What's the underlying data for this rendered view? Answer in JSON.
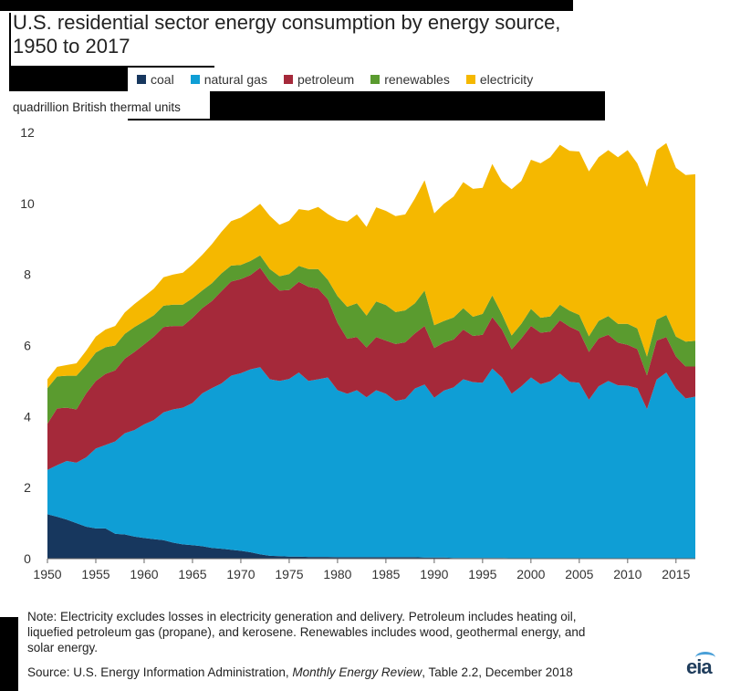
{
  "header": {
    "title_line1": "U.S. residential sector energy consumption by energy source,",
    "title_line2": "1950 to 2017",
    "units": "quadrillion British thermal units"
  },
  "legend": [
    {
      "label": "coal",
      "color": "#17375e"
    },
    {
      "label": "natural gas",
      "color": "#0f9ed5"
    },
    {
      "label": "petroleum",
      "color": "#a5293a"
    },
    {
      "label": "renewables",
      "color": "#5a9b2f"
    },
    {
      "label": "electricity",
      "color": "#f5b800"
    }
  ],
  "footer": {
    "note_line1": "Note: Electricity excludes losses in electricity generation and delivery. Petroleum includes heating oil,",
    "note_line2": "liquefied petroleum gas (propane), and kerosene. Renewables includes wood, geothermal energy, and",
    "note_line3": "solar energy.",
    "source_prefix": "Source: U.S. Energy Information Administration, ",
    "source_title": "Monthly Energy Review",
    "source_suffix": ", Table 2.2, December 2018",
    "logo": "eia"
  },
  "chart_data": {
    "type": "area",
    "stacked": true,
    "title": "U.S. residential sector energy consumption by energy source, 1950 to 2017",
    "ylabel": "quadrillion British thermal units",
    "xlabel": "",
    "xlim": [
      1950,
      2017
    ],
    "ylim": [
      0,
      12
    ],
    "yticks": [
      0,
      2,
      4,
      6,
      8,
      10,
      12
    ],
    "xticks": [
      1950,
      1955,
      1960,
      1965,
      1970,
      1975,
      1980,
      1985,
      1990,
      1995,
      2000,
      2005,
      2010,
      2015
    ],
    "grid": false,
    "legend_position": "top",
    "x": [
      1950,
      1951,
      1952,
      1953,
      1954,
      1955,
      1956,
      1957,
      1958,
      1959,
      1960,
      1961,
      1962,
      1963,
      1964,
      1965,
      1966,
      1967,
      1968,
      1969,
      1970,
      1971,
      1972,
      1973,
      1974,
      1975,
      1976,
      1977,
      1978,
      1979,
      1980,
      1981,
      1982,
      1983,
      1984,
      1985,
      1986,
      1987,
      1988,
      1989,
      1990,
      1991,
      1992,
      1993,
      1994,
      1995,
      1996,
      1997,
      1998,
      1999,
      2000,
      2001,
      2002,
      2003,
      2004,
      2005,
      2006,
      2007,
      2008,
      2009,
      2010,
      2011,
      2012,
      2013,
      2014,
      2015,
      2016,
      2017
    ],
    "series": [
      {
        "name": "coal",
        "color": "#17375e",
        "values": [
          1.25,
          1.18,
          1.1,
          1.0,
          0.9,
          0.85,
          0.85,
          0.7,
          0.68,
          0.62,
          0.58,
          0.55,
          0.52,
          0.45,
          0.4,
          0.38,
          0.35,
          0.3,
          0.28,
          0.25,
          0.22,
          0.18,
          0.12,
          0.08,
          0.07,
          0.06,
          0.06,
          0.05,
          0.05,
          0.05,
          0.04,
          0.04,
          0.04,
          0.04,
          0.04,
          0.04,
          0.04,
          0.04,
          0.04,
          0.03,
          0.03,
          0.03,
          0.02,
          0.02,
          0.02,
          0.02,
          0.02,
          0.02,
          0.01,
          0.01,
          0.01,
          0.01,
          0.01,
          0.01,
          0.01,
          0.01,
          0.01,
          0.01,
          0.01,
          0.01,
          0.01,
          0.01,
          0.01,
          0.01,
          0.01,
          0.01,
          0.01,
          0.01
        ]
      },
      {
        "name": "natural gas",
        "color": "#0f9ed5",
        "values": [
          1.25,
          1.45,
          1.65,
          1.7,
          1.95,
          2.25,
          2.35,
          2.6,
          2.85,
          3.0,
          3.2,
          3.35,
          3.6,
          3.75,
          3.85,
          4.0,
          4.3,
          4.5,
          4.65,
          4.9,
          5.0,
          5.15,
          5.27,
          4.97,
          4.93,
          5.0,
          5.18,
          4.95,
          5.0,
          5.05,
          4.7,
          4.6,
          4.7,
          4.5,
          4.7,
          4.6,
          4.4,
          4.45,
          4.75,
          4.87,
          4.5,
          4.7,
          4.8,
          5.03,
          4.95,
          4.93,
          5.33,
          5.08,
          4.63,
          4.84,
          5.09,
          4.9,
          4.98,
          5.2,
          4.97,
          4.94,
          4.46,
          4.84,
          4.99,
          4.87,
          4.86,
          4.79,
          4.2,
          5.03,
          5.23,
          4.78,
          4.5,
          4.55
        ]
      },
      {
        "name": "petroleum",
        "color": "#a5293a",
        "values": [
          1.3,
          1.6,
          1.5,
          1.5,
          1.8,
          1.9,
          2.0,
          2.0,
          2.1,
          2.2,
          2.25,
          2.35,
          2.4,
          2.35,
          2.3,
          2.4,
          2.4,
          2.45,
          2.6,
          2.65,
          2.65,
          2.65,
          2.8,
          2.75,
          2.55,
          2.5,
          2.55,
          2.65,
          2.55,
          2.2,
          1.9,
          1.55,
          1.5,
          1.4,
          1.5,
          1.5,
          1.6,
          1.6,
          1.55,
          1.65,
          1.4,
          1.35,
          1.35,
          1.4,
          1.3,
          1.35,
          1.45,
          1.35,
          1.25,
          1.35,
          1.45,
          1.45,
          1.4,
          1.5,
          1.55,
          1.45,
          1.35,
          1.35,
          1.3,
          1.2,
          1.15,
          1.1,
          0.95,
          1.1,
          1.0,
          0.9,
          0.9,
          0.85
        ]
      },
      {
        "name": "renewables",
        "color": "#5a9b2f",
        "values": [
          1.0,
          0.9,
          0.9,
          0.95,
          0.8,
          0.8,
          0.75,
          0.7,
          0.7,
          0.7,
          0.65,
          0.6,
          0.6,
          0.6,
          0.6,
          0.55,
          0.5,
          0.5,
          0.5,
          0.45,
          0.4,
          0.4,
          0.35,
          0.35,
          0.4,
          0.45,
          0.45,
          0.5,
          0.55,
          0.55,
          0.75,
          0.9,
          0.95,
          0.9,
          1.0,
          1.0,
          0.9,
          0.9,
          0.85,
          1.0,
          0.64,
          0.61,
          0.62,
          0.6,
          0.54,
          0.59,
          0.61,
          0.43,
          0.39,
          0.41,
          0.48,
          0.42,
          0.43,
          0.44,
          0.45,
          0.46,
          0.44,
          0.49,
          0.53,
          0.53,
          0.59,
          0.58,
          0.53,
          0.59,
          0.62,
          0.56,
          0.7,
          0.72
        ]
      },
      {
        "name": "electricity",
        "color": "#f5b800",
        "values": [
          0.25,
          0.27,
          0.3,
          0.35,
          0.4,
          0.45,
          0.5,
          0.55,
          0.6,
          0.65,
          0.7,
          0.75,
          0.8,
          0.85,
          0.9,
          0.95,
          1.0,
          1.1,
          1.17,
          1.25,
          1.33,
          1.4,
          1.45,
          1.5,
          1.45,
          1.5,
          1.6,
          1.65,
          1.75,
          1.85,
          2.15,
          2.4,
          2.5,
          2.5,
          2.65,
          2.65,
          2.7,
          2.7,
          2.95,
          3.1,
          3.15,
          3.3,
          3.4,
          3.55,
          3.6,
          3.55,
          3.7,
          3.74,
          4.12,
          4.02,
          4.2,
          4.35,
          4.48,
          4.5,
          4.5,
          4.6,
          4.64,
          4.61,
          4.67,
          4.69,
          4.89,
          4.65,
          4.77,
          4.77,
          4.84,
          4.75,
          4.69,
          4.69
        ]
      }
    ]
  }
}
